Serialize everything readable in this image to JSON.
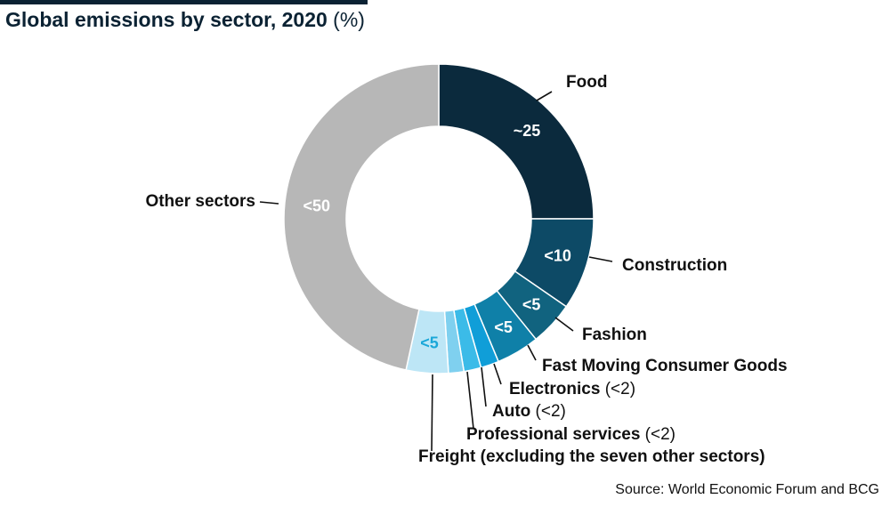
{
  "title": "Global emissions by sector, 2020",
  "title_unit": "(%)",
  "source": "Source: World Economic Forum and BCG",
  "colors": {
    "title_bar": "#0b2233",
    "food": "#0b2a3d",
    "construction": "#0d4a66",
    "fashion": "#11637f",
    "fmcg": "#0f80a8",
    "electronics": "#109ed8",
    "auto": "#3bbbe8",
    "professional_services": "#7fd0ef",
    "freight": "#bde6f6",
    "other": "#b7b7b7"
  },
  "chart_data": {
    "type": "pie",
    "variant": "donut",
    "title": "Global emissions by sector, 2020",
    "unit": "%",
    "slices": [
      {
        "label": "Food",
        "label_suffix": "",
        "display_value": "~25",
        "value": 25,
        "color": "#0b2a3d",
        "value_color": "#ffffff"
      },
      {
        "label": "Construction",
        "label_suffix": "",
        "display_value": "<10",
        "value": 9.6,
        "color": "#0d4a66",
        "value_color": "#ffffff"
      },
      {
        "label": "Fashion",
        "label_suffix": "",
        "display_value": "<5",
        "value": 4.6,
        "color": "#11637f",
        "value_color": "#ffffff"
      },
      {
        "label": "Fast Moving Consumer Goods",
        "label_suffix": "",
        "display_value": "<5",
        "value": 4.5,
        "color": "#0f80a8",
        "value_color": "#ffffff"
      },
      {
        "label": "Electronics",
        "label_suffix": "(<2)",
        "display_value": "",
        "value": 1.9,
        "color": "#109ed8",
        "value_color": "#ffffff"
      },
      {
        "label": "Auto",
        "label_suffix": "(<2)",
        "display_value": "",
        "value": 1.8,
        "color": "#3bbbe8",
        "value_color": "#ffffff"
      },
      {
        "label": "Professional services",
        "label_suffix": "(<2)",
        "display_value": "",
        "value": 1.6,
        "color": "#7fd0ef",
        "value_color": "#ffffff"
      },
      {
        "label": "Freight (excluding the seven other sectors)",
        "label_suffix": "",
        "display_value": "<5",
        "value": 4.4,
        "color": "#bde6f6",
        "value_color": "#1aa7d8"
      },
      {
        "label": "Other sectors",
        "label_suffix": "",
        "display_value": "<50",
        "value": 46.6,
        "color": "#b7b7b7",
        "value_color": "#ffffff"
      }
    ]
  }
}
